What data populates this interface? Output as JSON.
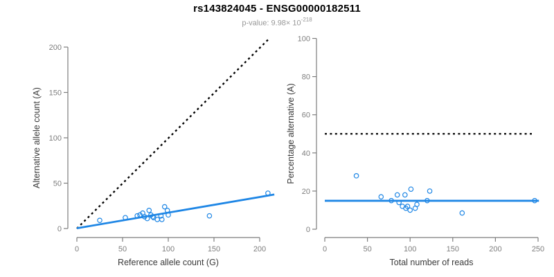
{
  "header": {
    "title": "rs143824045 - ENSG00000182511",
    "subtitle_prefix": "p-value: 9.98× 10",
    "subtitle_exponent": "-218"
  },
  "colors": {
    "accent_blue": "#1E86E5",
    "dotted_black": "#000000",
    "axis_gray": "#7d7d7d",
    "tick_label_gray": "#7d7d7d",
    "axis_label_dark": "#3a3a3a",
    "subtitle_gray": "#979797"
  },
  "chart_data": [
    {
      "type": "scatter",
      "xlabel": "Reference allele count (G)",
      "ylabel": "Alternative allele count (A)",
      "xlim": [
        0,
        210
      ],
      "ylim": [
        0,
        210
      ],
      "xticks": [
        0,
        50,
        100,
        150,
        200
      ],
      "yticks": [
        0,
        50,
        100,
        150,
        200
      ],
      "grid": false,
      "points": [
        [
          25,
          9
        ],
        [
          53,
          12
        ],
        [
          66,
          14
        ],
        [
          69,
          15
        ],
        [
          72,
          17
        ],
        [
          74,
          13
        ],
        [
          77,
          11
        ],
        [
          79,
          20
        ],
        [
          81,
          15
        ],
        [
          83,
          13
        ],
        [
          84,
          12
        ],
        [
          88,
          10
        ],
        [
          92,
          14
        ],
        [
          93,
          10
        ],
        [
          96,
          24
        ],
        [
          99,
          20
        ],
        [
          100,
          15
        ],
        [
          145,
          14
        ],
        [
          209,
          39
        ]
      ],
      "lines": [
        {
          "name": "identity-line",
          "style": "dotted",
          "color": "#000000",
          "width": 2.4,
          "from": [
            0,
            0
          ],
          "to": [
            209,
            208
          ]
        },
        {
          "name": "fit-line",
          "style": "solid",
          "color": "#1E86E5",
          "width": 2.8,
          "from": [
            0,
            0.3
          ],
          "to": [
            216,
            37.5
          ]
        }
      ]
    },
    {
      "type": "scatter",
      "xlabel": "Total number of reads",
      "ylabel": "Percentage alternative (A)",
      "xlim": [
        0,
        250
      ],
      "ylim": [
        0,
        100
      ],
      "xticks": [
        0,
        50,
        100,
        150,
        200,
        250
      ],
      "yticks": [
        0,
        20,
        40,
        60,
        80,
        100
      ],
      "grid": false,
      "points": [
        [
          37,
          28
        ],
        [
          66,
          17
        ],
        [
          78,
          15
        ],
        [
          85,
          18
        ],
        [
          87,
          14
        ],
        [
          91,
          12
        ],
        [
          94,
          18
        ],
        [
          95,
          11
        ],
        [
          97,
          12
        ],
        [
          100,
          10
        ],
        [
          101,
          21
        ],
        [
          106,
          11
        ],
        [
          108,
          13
        ],
        [
          120,
          15
        ],
        [
          123,
          20
        ],
        [
          161,
          8.5
        ],
        [
          246,
          15
        ]
      ],
      "lines": [
        {
          "name": "fifty-percent-line",
          "style": "dotted",
          "color": "#000000",
          "width": 2.2,
          "from": [
            0,
            50
          ],
          "to": [
            245,
            50
          ]
        },
        {
          "name": "mean-percentage-line",
          "style": "solid",
          "color": "#1E86E5",
          "width": 2.8,
          "from": [
            0,
            14.9
          ],
          "to": [
            251,
            14.9
          ]
        }
      ]
    }
  ]
}
